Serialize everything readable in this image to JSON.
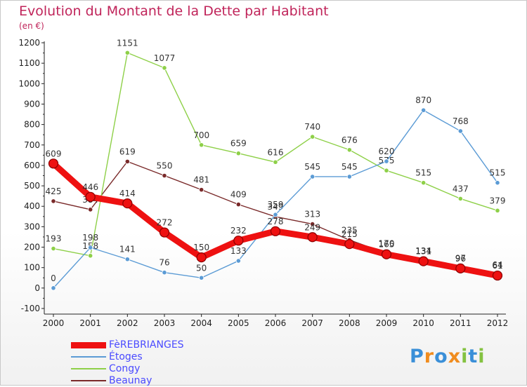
{
  "title": "Evolution du Montant de la Dette par Habitant",
  "unit": "(en €)",
  "logo": {
    "letters": [
      "P",
      "r",
      "o",
      "x",
      "i",
      "t",
      "i"
    ],
    "colors": [
      "#3a8fd8",
      "#f08c1e",
      "#3a8fd8",
      "#f08c1e",
      "#84c241",
      "#3a8fd8",
      "#84c241"
    ]
  },
  "chart_data": {
    "type": "line",
    "title": "Evolution du Montant de la Dette par Habitant",
    "ylabel": "(en €)",
    "xlabel": "",
    "x": [
      2000,
      2001,
      2002,
      2003,
      2004,
      2005,
      2006,
      2007,
      2008,
      2009,
      2010,
      2011,
      2012
    ],
    "ylim": [
      -100,
      1200
    ],
    "yticks": [
      -100,
      0,
      100,
      200,
      300,
      400,
      500,
      600,
      700,
      800,
      900,
      1000,
      1100,
      1200
    ],
    "grid": false,
    "legend_position": "bottom-left",
    "series": [
      {
        "name": "Beaunay",
        "color": "#7a2a2a",
        "values": [
          425,
          384,
          619,
          550,
          481,
          409,
          349,
          313,
          235,
          170,
          134,
          97,
          64
        ],
        "labels": [
          "425",
          "384",
          "619",
          "550",
          "481",
          "409",
          "349",
          "313",
          "235",
          "170",
          "134",
          "97",
          "64"
        ]
      },
      {
        "name": "Congy",
        "color": "#8ed048",
        "values": [
          193,
          158,
          1151,
          1077,
          700,
          659,
          616,
          740,
          676,
          575,
          515,
          437,
          379
        ],
        "labels": [
          "193",
          "158",
          "1151",
          "1077",
          "700",
          "659",
          "616",
          "740",
          "676",
          "575",
          "515",
          "437",
          "379"
        ]
      },
      {
        "name": "Étoges",
        "color": "#5b9bd5",
        "values": [
          0,
          198,
          141,
          76,
          50,
          133,
          359,
          545,
          545,
          620,
          870,
          768,
          515
        ],
        "labels": [
          "0",
          "198",
          "141",
          "76",
          "50",
          "133",
          "359",
          "545",
          "545",
          "620",
          "870",
          "768",
          "515"
        ]
      },
      {
        "name": "FèREBRIANGES",
        "color": "#ee1111",
        "thick": true,
        "values": [
          609,
          446,
          414,
          272,
          150,
          232,
          278,
          249,
          215,
          165,
          131,
          96,
          61
        ],
        "labels": [
          "609",
          "446",
          "414",
          "272",
          "150",
          "232",
          "278",
          "249",
          "215",
          "165",
          "131",
          "96",
          "61"
        ]
      }
    ]
  },
  "legend": [
    {
      "label": "FèREBRIANGES",
      "color": "#ee1111",
      "thick": true
    },
    {
      "label": "Étoges",
      "color": "#5b9bd5"
    },
    {
      "label": "Congy",
      "color": "#8ed048"
    },
    {
      "label": "Beaunay",
      "color": "#7a2a2a"
    }
  ]
}
